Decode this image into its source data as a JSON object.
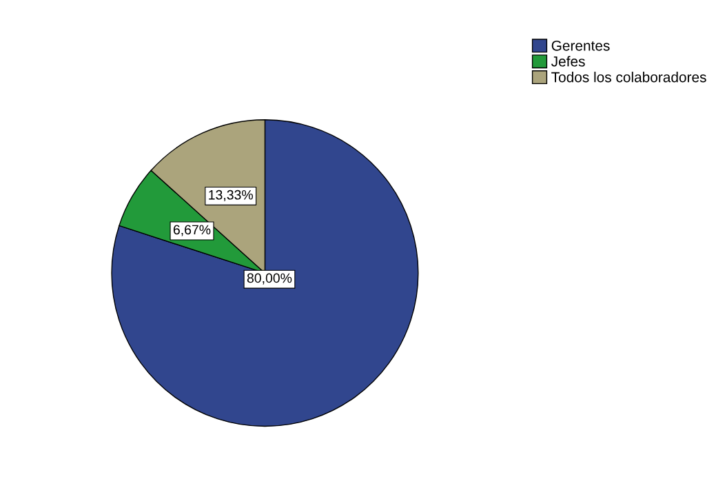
{
  "chart_data": {
    "type": "pie",
    "categories": [
      "Gerentes",
      "Jefes",
      "Todos los colaboradores"
    ],
    "values": [
      80,
      6.67,
      13.33
    ],
    "colors": [
      "#31468e",
      "#229a3a",
      "#aba47c"
    ],
    "value_labels": [
      "80,00%",
      "6,67%",
      "13,33%"
    ],
    "legend": "top right"
  }
}
